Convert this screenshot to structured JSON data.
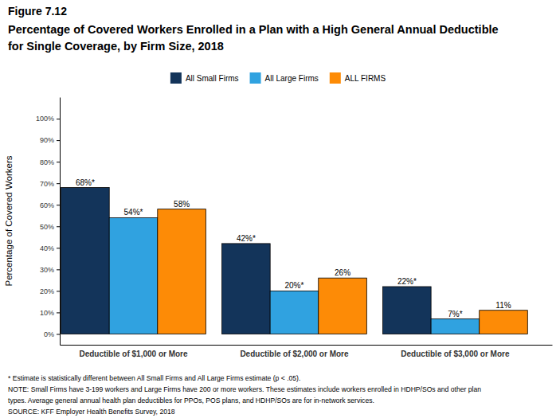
{
  "chart_data": {
    "type": "bar",
    "figure_label": "Figure 7.12",
    "title": [
      "Percentage of Covered Workers Enrolled in a Plan with a High General Annual Deductible",
      "for Single Coverage, by Firm Size, 2018"
    ],
    "y_label": "Percentage of Covered Workers",
    "categories": [
      "Deductible of $1,000 or More",
      "Deductible of $2,000 or More",
      "Deductible of $3,000 or More"
    ],
    "series": [
      {
        "name": "All Small Firms",
        "color": "#13345a",
        "values": [
          68,
          42,
          22
        ],
        "value_labels": [
          "68%*",
          "42%*",
          "22%*"
        ]
      },
      {
        "name": "All Large Firms",
        "color": "#30a2e0",
        "values": [
          54,
          20,
          7
        ],
        "value_labels": [
          "54%*",
          "20%*",
          "7%*"
        ]
      },
      {
        "name": "ALL FIRMS",
        "color": "#fd8b06",
        "values": [
          58,
          26,
          11
        ],
        "value_labels": [
          "58%",
          "26%",
          "11%"
        ]
      }
    ],
    "ylim": [
      -5,
      110
    ],
    "yticks": [
      {
        "value": 0,
        "label": "0%"
      },
      {
        "value": 10,
        "label": "10%"
      },
      {
        "value": 20,
        "label": "20%"
      },
      {
        "value": 30,
        "label": "30%"
      },
      {
        "value": 40,
        "label": "40%"
      },
      {
        "value": 50,
        "label": "50%"
      },
      {
        "value": 60,
        "label": "60%"
      },
      {
        "value": 70,
        "label": "70%"
      },
      {
        "value": 80,
        "label": "80%"
      },
      {
        "value": 90,
        "label": "90%"
      },
      {
        "value": 100,
        "label": "100%"
      }
    ],
    "grid": false,
    "legend": "top",
    "data_labels": true,
    "notes": [
      "* Estimate is statistically different between All Small Firms and All Large Firms estimate (p < .05).",
      "NOTE: Small Firms have 3-199 workers and Large Firms have 200 or more workers. These estimates include workers enrolled in HDHP/SOs and other plan",
      "types. Average general annual health plan deductibles for PPOs, POS plans, and HDHP/SOs are for in-network services.",
      "SOURCE: KFF Employer Health Benefits Survey, 2018"
    ]
  }
}
